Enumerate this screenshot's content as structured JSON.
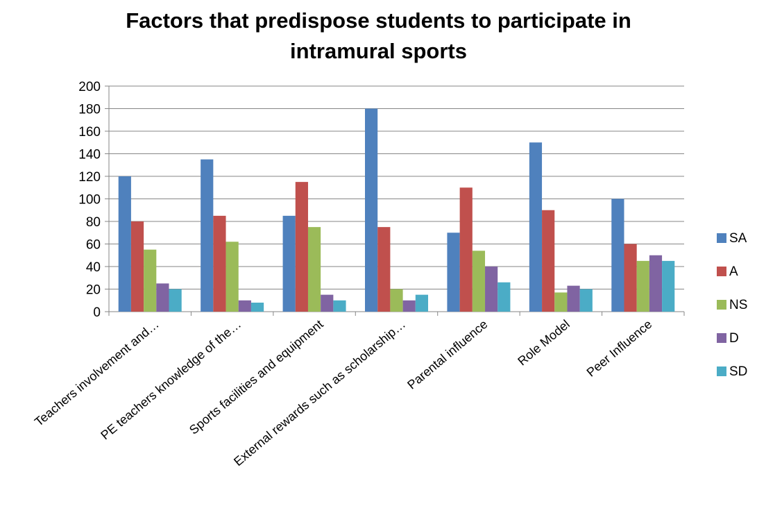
{
  "chart_data": {
    "type": "bar",
    "title": "Factors that predispose students to participate in\nintramural sports",
    "xlabel": "",
    "ylabel": "",
    "ylim": [
      0,
      200
    ],
    "yticks": [
      0,
      20,
      40,
      60,
      80,
      100,
      120,
      140,
      160,
      180,
      200
    ],
    "grid": true,
    "legend": "right",
    "categories": [
      "Teachers involvement and…",
      "PE teachers knowledge of the…",
      "Sports facilities and equipment",
      "External rewards such as scholarship…",
      "Parental influence",
      "Role Model",
      "Peer Influence"
    ],
    "series": [
      {
        "name": "SA",
        "color": "#4F81BD",
        "values": [
          120,
          135,
          85,
          180,
          70,
          150,
          100
        ]
      },
      {
        "name": "A",
        "color": "#C0504D",
        "values": [
          80,
          85,
          115,
          75,
          110,
          90,
          60
        ]
      },
      {
        "name": "NS",
        "color": "#9BBB59",
        "values": [
          55,
          62,
          75,
          20,
          54,
          17,
          45
        ]
      },
      {
        "name": "D",
        "color": "#8064A2",
        "values": [
          25,
          10,
          15,
          10,
          40,
          23,
          50
        ]
      },
      {
        "name": "SD",
        "color": "#4BACC6",
        "values": [
          20,
          8,
          10,
          15,
          26,
          20,
          45
        ]
      }
    ]
  }
}
